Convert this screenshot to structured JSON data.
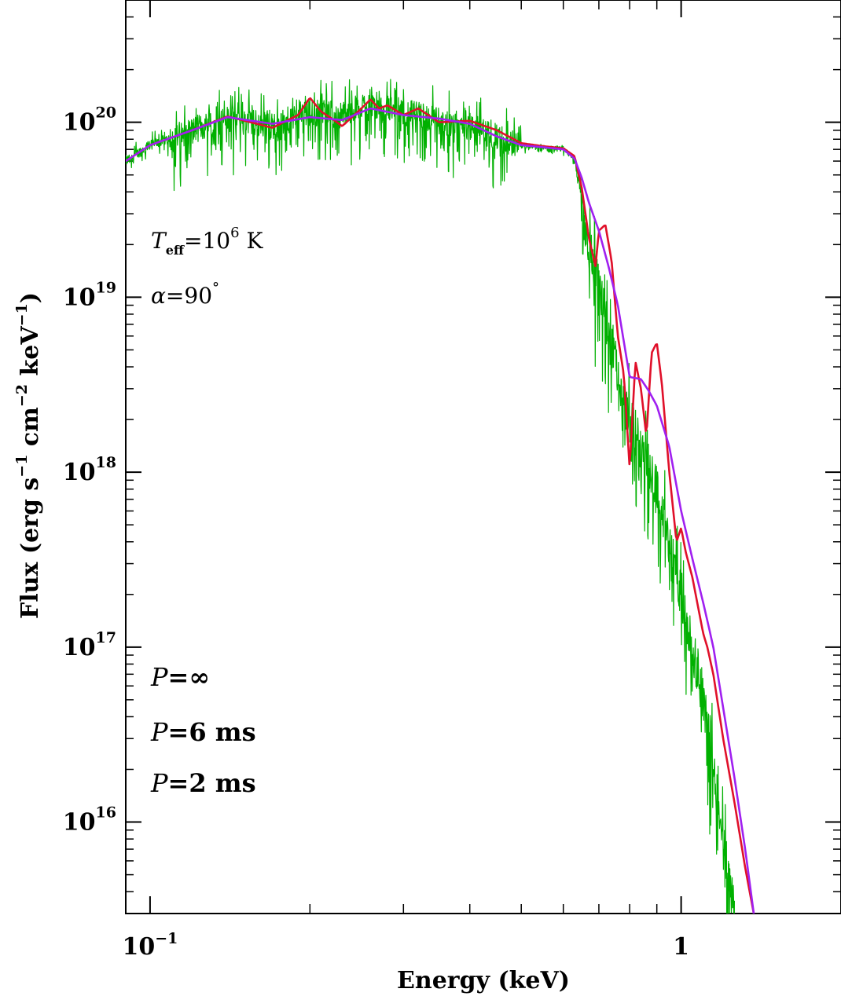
{
  "chart_data": {
    "type": "line",
    "xlabel": "Energy (keV)",
    "ylabel": "Flux (erg s$^{-1}$ cm$^{-2}$ keV$^{-1}$)",
    "ylabel_parts": {
      "prefix": "Flux (erg s",
      "e1": "−1",
      "mid1": " cm",
      "e2": "−2",
      "mid2": " keV",
      "e3": "−1",
      "suffix": ")"
    },
    "x_scale": "log",
    "y_scale": "log",
    "xlim": [
      0.09,
      2.0
    ],
    "ylim": [
      3000000000000000.0,
      5e+20
    ],
    "x_ticks": [
      {
        "value": 0.1,
        "base": "10",
        "exp": "−1"
      },
      {
        "value": 1.0,
        "base": "1",
        "exp": ""
      }
    ],
    "y_ticks": [
      {
        "value": 1e+16,
        "base": "10",
        "exp": "16"
      },
      {
        "value": 1e+17,
        "base": "10",
        "exp": "17"
      },
      {
        "value": 1e+18,
        "base": "10",
        "exp": "18"
      },
      {
        "value": 1e+19,
        "base": "10",
        "exp": "19"
      },
      {
        "value": 1e+20,
        "base": "10",
        "exp": "20"
      }
    ],
    "annotations": {
      "teff": {
        "sym": "T",
        "sub": "eff",
        "eq": "=10",
        "exp": "6",
        "unit": " K"
      },
      "alpha": {
        "sym": "α",
        "eq": "=90",
        "exp": "°"
      }
    },
    "grid": false,
    "legend_position": "bottom-left",
    "series": [
      {
        "name": "P=∞",
        "label_sym": "P",
        "label_rest": "=∞",
        "color": "#00b000",
        "noisy": true,
        "x": [
          0.09,
          0.1,
          0.12,
          0.14,
          0.17,
          0.2,
          0.23,
          0.26,
          0.3,
          0.35,
          0.4,
          0.45,
          0.5,
          0.55,
          0.6,
          0.63,
          0.65,
          0.67,
          0.7,
          0.73,
          0.76,
          0.8,
          0.85,
          0.9,
          0.95,
          1.0,
          1.05,
          1.1,
          1.15,
          1.2,
          1.26
        ],
        "y": [
          6e+19,
          7.4e+19,
          9e+19,
          1.05e+20,
          9.5e+19,
          1.15e+20,
          1.1e+20,
          1.3e+20,
          1.15e+20,
          1.02e+20,
          9.5e+19,
          8.2e+19,
          7.3e+19,
          7.2e+19,
          7.1e+19,
          6.2e+19,
          3.5e+19,
          2e+19,
          1.2e+19,
          6e+18,
          3.5e+18,
          2e+18,
          1.3e+18,
          8e+17,
          4e+17,
          2e+17,
          1e+17,
          5e+16,
          2.2e+16,
          8000000000000000.0,
          3200000000000000.0
        ]
      },
      {
        "name": "P=6 ms",
        "label_sym": "P",
        "label_rest": "=6 ms",
        "color": "#e0102a",
        "noisy": false,
        "x": [
          0.09,
          0.1,
          0.12,
          0.14,
          0.17,
          0.19,
          0.2,
          0.21,
          0.22,
          0.23,
          0.25,
          0.26,
          0.27,
          0.28,
          0.3,
          0.32,
          0.35,
          0.4,
          0.45,
          0.5,
          0.55,
          0.6,
          0.63,
          0.65,
          0.67,
          0.69,
          0.7,
          0.72,
          0.74,
          0.76,
          0.78,
          0.8,
          0.82,
          0.84,
          0.86,
          0.88,
          0.9,
          0.92,
          0.95,
          0.98,
          1.0,
          1.02,
          1.05,
          1.1,
          1.12,
          1.15,
          1.2,
          1.26,
          1.32,
          1.37
        ],
        "y": [
          6e+19,
          7.4e+19,
          9e+19,
          1.08e+20,
          9.3e+19,
          1.1e+20,
          1.38e+20,
          1.15e+20,
          1.05e+20,
          9.5e+19,
          1.2e+20,
          1.35e+20,
          1.2e+20,
          1.25e+20,
          1.1e+20,
          1.2e+20,
          1e+20,
          1.02e+20,
          9e+19,
          7.6e+19,
          7.3e+19,
          7.1e+19,
          6.4e+19,
          4.2e+19,
          2.2e+19,
          1.5e+19,
          2.4e+19,
          2.6e+19,
          1.6e+19,
          6e+18,
          3.6e+18,
          1.05e+18,
          4.3e+18,
          3e+18,
          1.6e+18,
          4.8e+18,
          5.5e+18,
          3.2e+18,
          1e+18,
          4e+17,
          4.8e+17,
          3.5e+17,
          2.5e+17,
          1.2e+17,
          1e+17,
          7e+16,
          3e+16,
          1.3e+16,
          5500000000000000.0,
          3000000000000000.0
        ]
      },
      {
        "name": "P=2 ms",
        "label_sym": "P",
        "label_rest": "=2 ms",
        "color": "#a020f0",
        "noisy": false,
        "x": [
          0.09,
          0.1,
          0.12,
          0.14,
          0.17,
          0.2,
          0.23,
          0.26,
          0.3,
          0.35,
          0.4,
          0.45,
          0.5,
          0.55,
          0.6,
          0.63,
          0.65,
          0.67,
          0.7,
          0.73,
          0.76,
          0.8,
          0.84,
          0.87,
          0.9,
          0.95,
          1.0,
          1.05,
          1.1,
          1.15,
          1.2,
          1.26,
          1.32,
          1.37
        ],
        "y": [
          6e+19,
          7.4e+19,
          9e+19,
          1.07e+20,
          9.8e+19,
          1.07e+20,
          1.03e+20,
          1.2e+20,
          1.1e+20,
          1.05e+20,
          9.8e+19,
          8.3e+19,
          7.4e+19,
          7.2e+19,
          7e+19,
          6.2e+19,
          4.8e+19,
          3.5e+19,
          2.4e+19,
          1.5e+19,
          9e+18,
          3.5e+18,
          3.4e+18,
          2.9e+18,
          2.4e+18,
          1.4e+18,
          6e+17,
          3.2e+17,
          1.8e+17,
          1e+17,
          4.5e+16,
          1.8e+16,
          7000000000000000.0,
          3000000000000000.0
        ]
      }
    ]
  }
}
